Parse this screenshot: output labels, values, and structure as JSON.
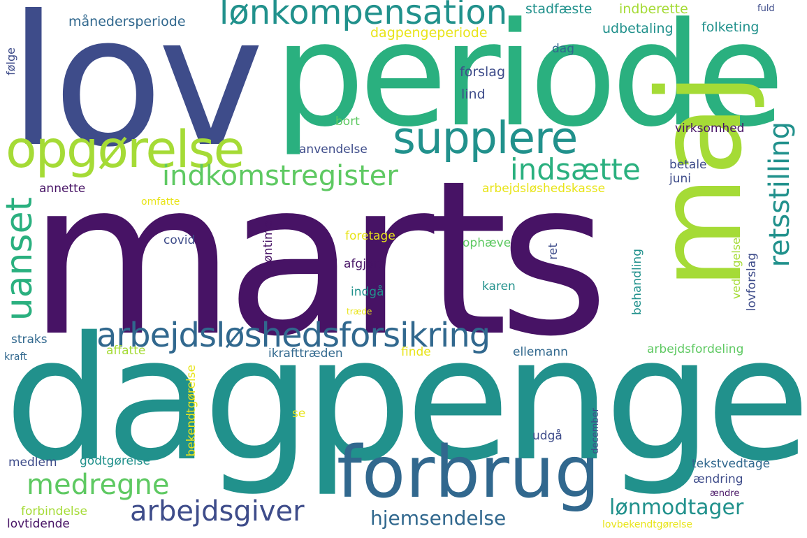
{
  "palette": {
    "dark_purple": "#471365",
    "indigo": "#3e4c8a",
    "slate_blue": "#31688e",
    "teal": "#21918c",
    "green_teal": "#2ab07f",
    "green": "#5ec962",
    "lime": "#a5db36",
    "yellow": "#e8e419"
  },
  "words": {
    "lov": "lov",
    "periode": "periode",
    "marts": "marts",
    "maj": "maj",
    "dagpenge": "dagpenge",
    "forbrug": "forbrug",
    "opgorelse": "opgørelse",
    "supplere": "supplere",
    "lonkompensation": "lønkompensation",
    "indkomstregister": "indkomstregister",
    "indsaette": "indsætte",
    "uanset": "uanset",
    "retsstilling": "retsstilling",
    "arbejdsloshedsforsikring": "arbejdsløshedsforsikring",
    "medregne": "medregne",
    "arbejdsgiver": "arbejdsgiver",
    "hjemsendelse": "hjemsendelse",
    "lonmodtager": "lønmodtager",
    "manedersperiode": "månedersperiode",
    "dagpengeperiode": "dagpengeperiode",
    "stadfaeste": "stadfæste",
    "indberette": "indberette",
    "fuld": "fuld",
    "udbetaling": "udbetaling",
    "folketing": "folketing",
    "dag": "dag",
    "folge": "følge",
    "forslag": "forslag",
    "lind": "lind",
    "bort": "bort",
    "virksomhed": "virksomhed",
    "anvendelse": "anvendelse",
    "betale": "betale",
    "juni": "juni",
    "annette": "annette",
    "arbejdsloshedskasse": "arbejdsløshedskasse",
    "omfatte": "omfatte",
    "lontime": "løntime",
    "covid": "covid",
    "foretage": "foretage",
    "ophaeve": "ophæve",
    "ret": "ret",
    "afgjort": "afgjort",
    "behandling": "behandling",
    "vedtagelse": "vedtagelse",
    "lovforslag": "lovforslag",
    "karen": "karen",
    "indga": "indgå",
    "traede": "træde",
    "straks": "straks",
    "affatte": "affatte",
    "ikrafttraeden": "ikrafttræden",
    "finde": "finde",
    "ellemann": "ellemann",
    "arbejdsfordeling": "arbejdsfordeling",
    "kraft": "kraft",
    "bekendtgorelse": "bekendtgørelse",
    "se": "se",
    "december": "december",
    "udga": "udgå",
    "medlem": "medlem",
    "godtgorelse": "godtgørelse",
    "tekstvedtage": "tekstvedtage",
    "aendring": "ændring",
    "aendre": "ændre",
    "forbindelse": "forbindelse",
    "lovtidende": "lovtidende",
    "lovbekendtgorelse": "lovbekendtgørelse"
  }
}
